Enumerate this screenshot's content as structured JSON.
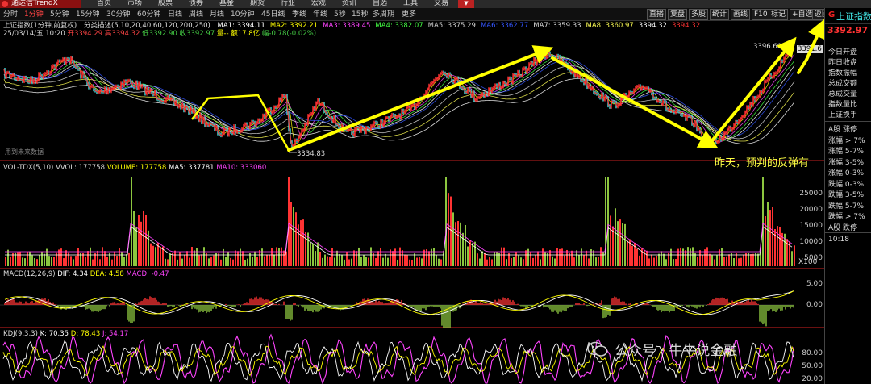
{
  "app": {
    "logo_text": "通达信TrendX"
  },
  "menu": [
    "首页",
    "市场",
    "股票",
    "债券",
    "基金",
    "期货",
    "行业",
    "宏观",
    "资讯",
    "自选",
    "工具",
    "交易"
  ],
  "periods": [
    {
      "label": "分时",
      "active": false
    },
    {
      "label": "1分钟",
      "active": true
    },
    {
      "label": "5分钟",
      "active": false
    },
    {
      "label": "15分钟",
      "active": false
    },
    {
      "label": "30分钟",
      "active": false
    },
    {
      "label": "60分钟",
      "active": false
    },
    {
      "label": "日线",
      "active": false
    },
    {
      "label": "周线",
      "active": false
    },
    {
      "label": "月线",
      "active": false
    },
    {
      "label": "10分钟",
      "active": false
    },
    {
      "label": "45日线",
      "active": false
    },
    {
      "label": "季线",
      "active": false
    },
    {
      "label": "年线",
      "active": false
    },
    {
      "label": "5秒",
      "active": false
    },
    {
      "label": "15秒",
      "active": false
    },
    {
      "label": "多周期",
      "active": false
    },
    {
      "label": "更多",
      "active": false
    }
  ],
  "toolbar": [
    "直播",
    "复盘",
    "多股",
    "统计",
    "画线",
    "F10",
    "标记",
    "+自选",
    "返回"
  ],
  "main": {
    "title": "上证指数(1分钟,前复权)",
    "indicator_name": "分类描述(5,10,20,40,60,120,200,250)",
    "ma": [
      {
        "label": "MA1: 3394.11",
        "color": "#ffffff"
      },
      {
        "label": "MA2: 3392.21",
        "color": "#ffff00"
      },
      {
        "label": "MA3: 3389.45",
        "color": "#ff44ff"
      },
      {
        "label": "MA4: 3382.07",
        "color": "#44ff44"
      },
      {
        "label": "MA5: 3375.29",
        "color": "#cccccc"
      },
      {
        "label": "MA6: 3362.77",
        "color": "#3355ff"
      },
      {
        "label": "MA7: 3359.33",
        "color": "#dddddd"
      },
      {
        "label": "MA8: 3360.97",
        "color": "#ffff55"
      },
      {
        "label": "3394.32",
        "color": "#ffffff"
      },
      {
        "label": "3394.32",
        "color": "#ff3333"
      }
    ],
    "bar_info": {
      "date": "25/03/14/五 10:20",
      "open": "开3394.29",
      "high": "高3394.32",
      "low": "低3392.90",
      "close": "收3392.97",
      "vol": "量--",
      "amount": "额17.8亿",
      "change": "幅-0.78(-0.02%)"
    },
    "future_label": "用到未来数据",
    "high_mark": "3396.60",
    "low_mark": "3334.83",
    "right_tag": "3391.6",
    "annotation": "昨天，预判的反弹有"
  },
  "volume": {
    "title": "VOL-TDX(5,10)",
    "vvol": "VVOL: 177758",
    "volume": "VOLUME: 177758",
    "ma5": "MA5: 337781",
    "ma10": "MA10: 333060",
    "axis": [
      "25000",
      "20000",
      "15000",
      "10000",
      "5000"
    ],
    "unit": "X100"
  },
  "macd": {
    "title": "MACD(12,26,9)",
    "dif": "DIF: 4.34",
    "dea": "DEA: 4.58",
    "macd": "MACD: -0.47",
    "axis": [
      "5.00",
      "0.00"
    ]
  },
  "kdj": {
    "title": "KDJ(9,3,3)",
    "k": "K: 70.35",
    "d": "D: 78.43",
    "j": "J: 54.17",
    "axis": [
      "80.00",
      "50.00",
      "20.00"
    ]
  },
  "right_panel": {
    "badge": "G",
    "name": "上证指数",
    "price": "3392.97",
    "stats": [
      "今日开盘",
      "昨日收盘",
      "指数振幅",
      "总成交额",
      "总成交量",
      "指数量比",
      "上证换手"
    ],
    "breadth": [
      "A股 涨停",
      "涨幅 > 7%",
      "涨幅 5-7%",
      "涨幅 3-5%",
      "涨幅 0-3%",
      "跌幅 0-3%",
      "跌幅 3-5%",
      "跌幅 5-7%",
      "跌幅 > 7%",
      "A股 跌停"
    ],
    "time": "10:18"
  },
  "watermark": "公众号 · 牛牛说金融",
  "colors": {
    "up": "#ff3333",
    "down": "#8cc63f",
    "arrow": "#ffff00"
  }
}
